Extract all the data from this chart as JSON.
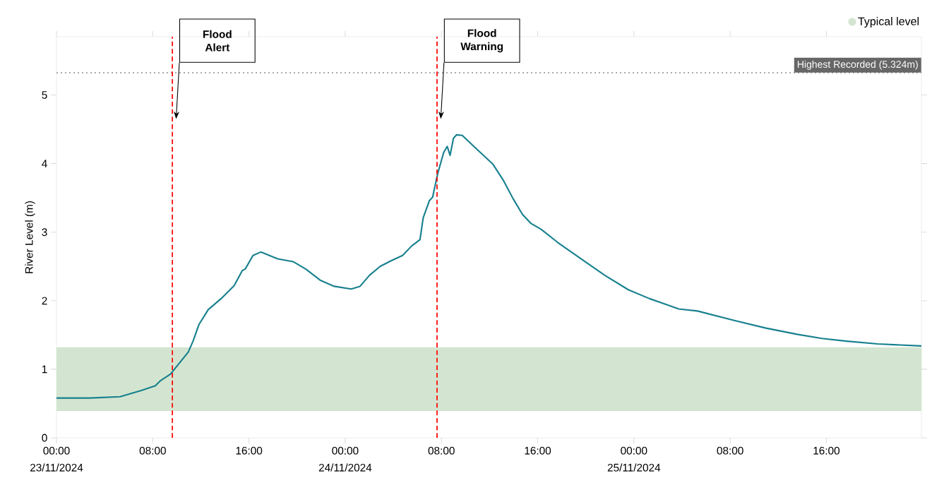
{
  "chart_data": {
    "type": "line",
    "ylabel": "River Level (m)",
    "x": [
      "2024-11-23T00:00",
      "2024-11-23T02:44",
      "2024-11-23T05:17",
      "2024-11-23T07:02",
      "2024-11-23T08:13",
      "2024-11-23T08:37",
      "2024-11-23T09:29",
      "2024-11-23T10:10",
      "2024-11-23T10:57",
      "2024-11-23T11:21",
      "2024-11-23T11:50",
      "2024-11-23T12:37",
      "2024-11-23T13:41",
      "2024-11-23T14:46",
      "2024-11-23T15:27",
      "2024-11-23T15:41",
      "2024-11-23T16:20",
      "2024-11-23T16:59",
      "2024-11-23T18:23",
      "2024-11-23T19:40",
      "2024-11-23T20:44",
      "2024-11-23T21:55",
      "2024-11-23T23:05",
      "2024-11-24T00:30",
      "2024-11-24T01:14",
      "2024-11-24T02:01",
      "2024-11-24T02:54",
      "2024-11-24T03:47",
      "2024-11-24T04:46",
      "2024-11-24T05:32",
      "2024-11-24T06:13",
      "2024-11-24T06:29",
      "2024-11-24T07:00",
      "2024-11-24T07:16",
      "2024-11-24T07:41",
      "2024-11-24T08:11",
      "2024-11-24T08:29",
      "2024-11-24T08:43",
      "2024-11-24T09:00",
      "2024-11-24T09:16",
      "2024-11-24T09:44",
      "2024-11-24T10:49",
      "2024-11-24T12:17",
      "2024-11-24T13:10",
      "2024-11-24T13:57",
      "2024-11-24T14:44",
      "2024-11-24T15:25",
      "2024-11-24T16:18",
      "2024-11-24T17:40",
      "2024-11-24T19:37",
      "2024-11-24T21:35",
      "2024-11-24T23:32",
      "2024-11-25T01:18",
      "2024-11-25T02:27",
      "2024-11-25T03:44",
      "2024-11-25T05:17",
      "2024-11-25T08:24",
      "2024-11-25T10:59",
      "2024-11-25T13:34",
      "2024-11-25T15:38",
      "2024-11-25T17:42",
      "2024-11-25T20:17",
      "2024-11-25T23:54"
    ],
    "series": [
      {
        "color": "#17808e",
        "values": [
          0.58,
          0.58,
          0.6,
          0.69,
          0.76,
          0.83,
          0.93,
          1.08,
          1.25,
          1.41,
          1.65,
          1.87,
          2.03,
          2.22,
          2.44,
          2.46,
          2.66,
          2.71,
          2.61,
          2.57,
          2.46,
          2.3,
          2.21,
          2.17,
          2.21,
          2.37,
          2.5,
          2.58,
          2.66,
          2.8,
          2.89,
          3.21,
          3.46,
          3.51,
          3.85,
          4.16,
          4.25,
          4.12,
          4.37,
          4.42,
          4.41,
          4.23,
          3.99,
          3.75,
          3.49,
          3.26,
          3.13,
          3.04,
          2.85,
          2.61,
          2.37,
          2.16,
          2.03,
          1.96,
          1.88,
          1.85,
          1.71,
          1.6,
          1.51,
          1.45,
          1.41,
          1.37,
          1.34
        ]
      }
    ],
    "xlim": [
      "2024-11-23T00:00",
      "2024-11-25T23:54"
    ],
    "ylim": [
      0,
      5.85
    ],
    "xticks": [
      {
        "value": "2024-11-23T00:00",
        "label": "00:00 23/11/2024"
      },
      {
        "value": "2024-11-23T08:00",
        "label": "08:00"
      },
      {
        "value": "2024-11-23T16:00",
        "label": "16:00"
      },
      {
        "value": "2024-11-24T00:00",
        "label": "00:00 24/11/2024"
      },
      {
        "value": "2024-11-24T08:00",
        "label": "08:00"
      },
      {
        "value": "2024-11-24T16:00",
        "label": "16:00"
      },
      {
        "value": "2024-11-25T00:00",
        "label": "00:00 25/11/2024"
      },
      {
        "value": "2024-11-25T08:00",
        "label": "08:00"
      },
      {
        "value": "2024-11-25T16:00",
        "label": "16:00"
      }
    ],
    "yticks": [
      0,
      1,
      2,
      3,
      4,
      5
    ],
    "bands": [
      {
        "axis": "y",
        "from": 0.39,
        "to": 1.32,
        "label": "Typical level",
        "color": "#d3e5d0"
      }
    ],
    "ref_lines": [
      {
        "axis": "y",
        "value": 5.324,
        "label": "Highest Recorded (5.324m)",
        "color": "#aaaaaa",
        "line_style": "dotted"
      },
      {
        "axis": "x",
        "value": "2024-11-23T09:38",
        "label": "Flood Alert",
        "color": "#ff0000",
        "line_style": "dashed"
      },
      {
        "axis": "x",
        "value": "2024-11-24T07:38",
        "label": "Flood Warning",
        "color": "#ff0000",
        "line_style": "dashed"
      }
    ],
    "legend": "top right"
  }
}
